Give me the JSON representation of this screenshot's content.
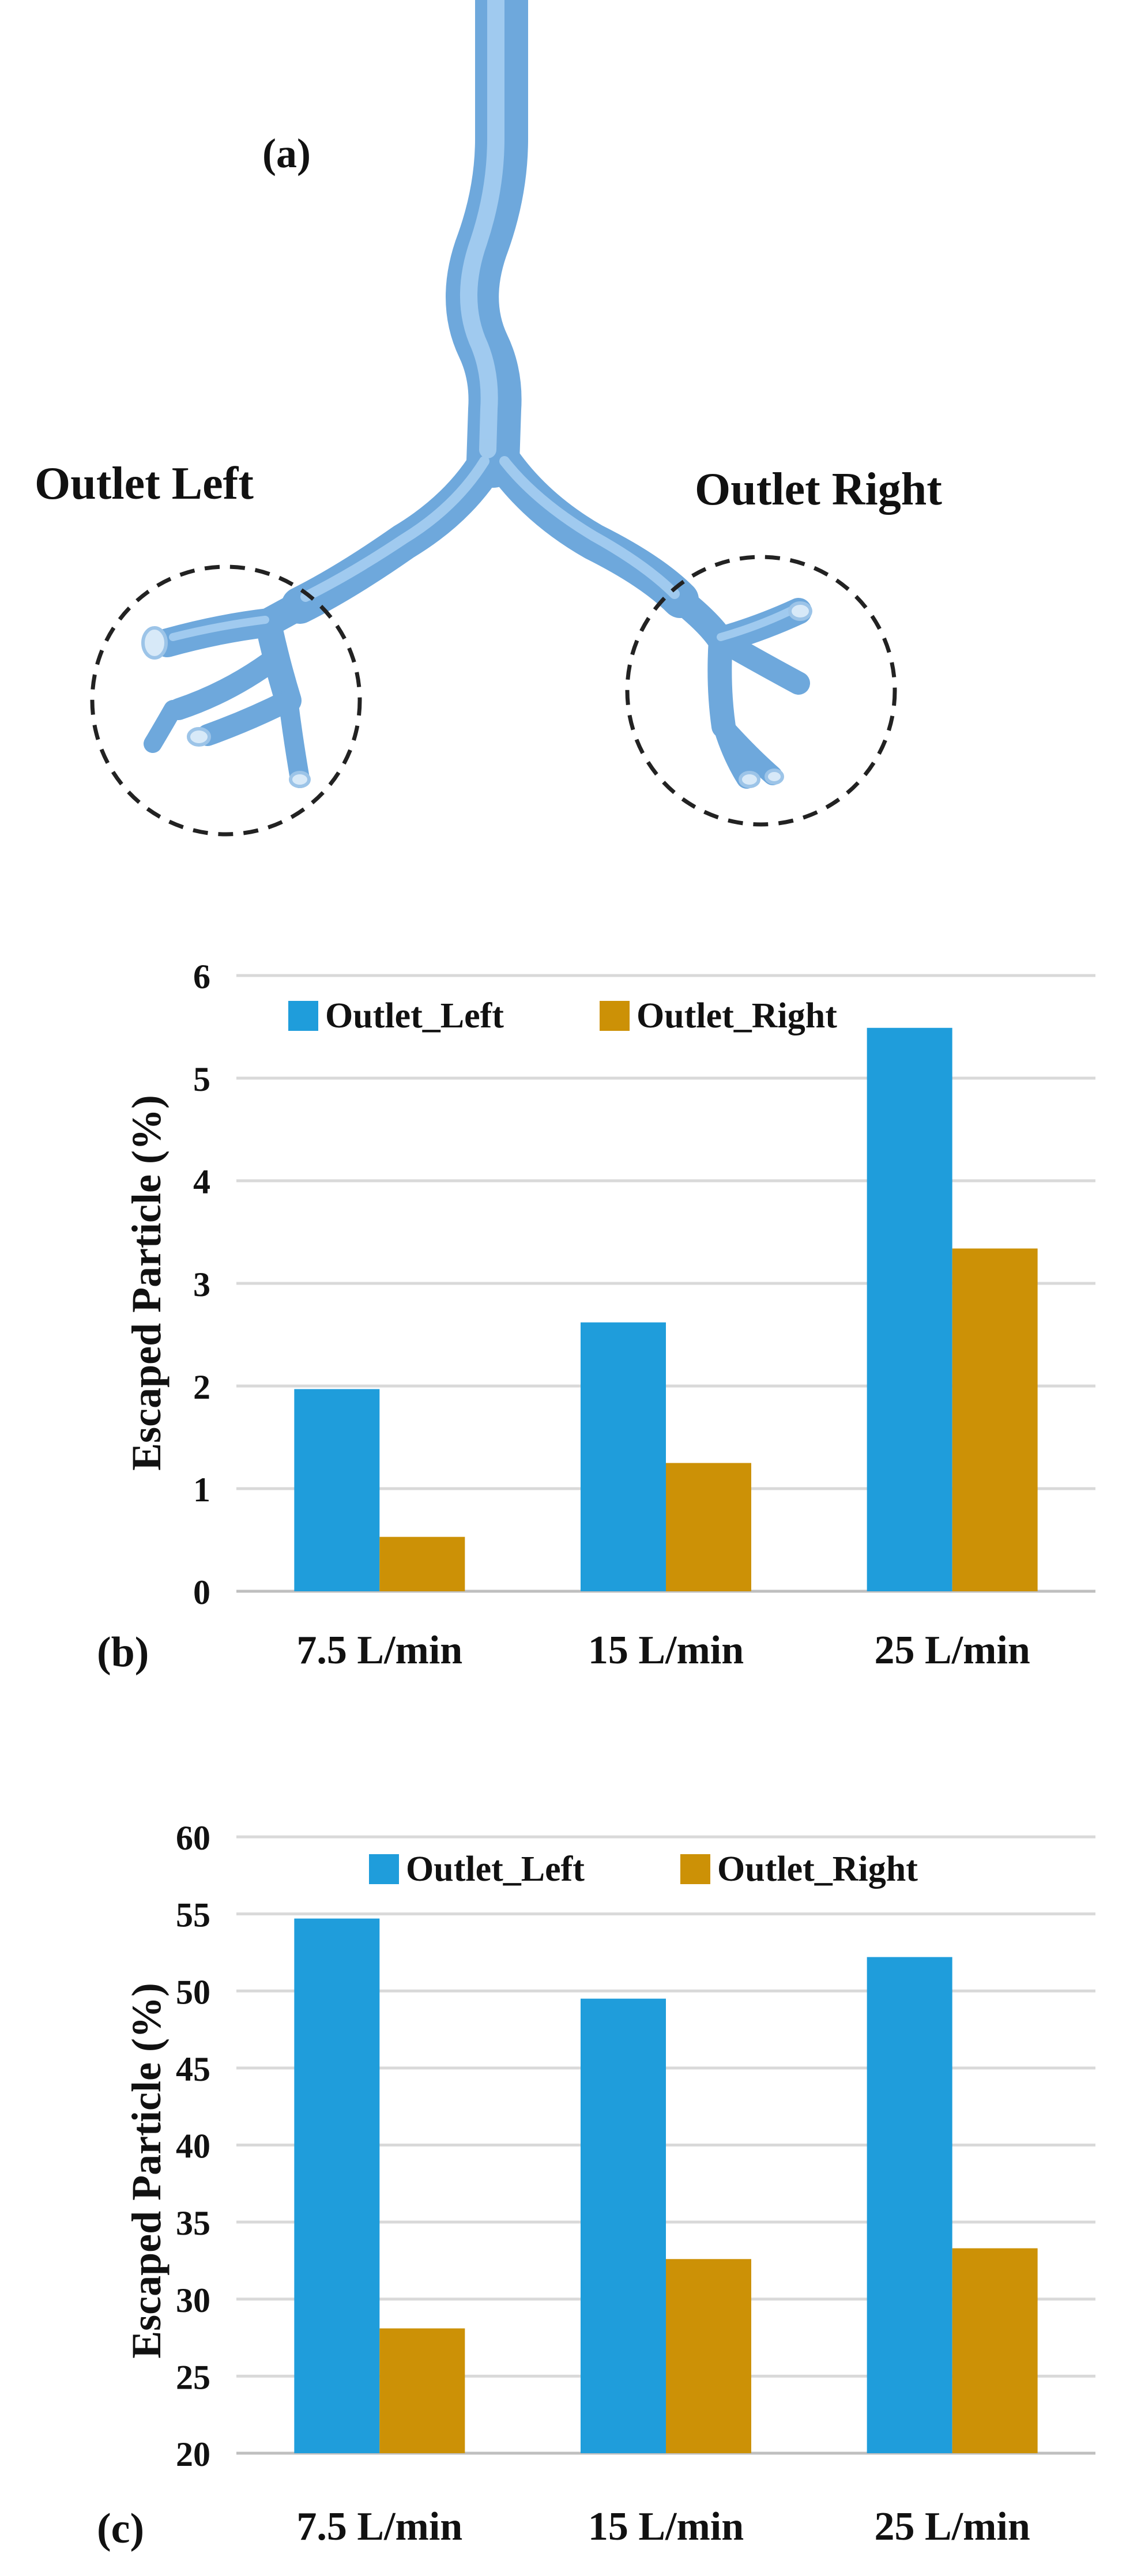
{
  "panel_a": {
    "label": "(a)",
    "outlet_left_label": "Outlet Left",
    "outlet_right_label": "Outlet Right",
    "airway_color": "#78b4e6",
    "circle_color": "#222222"
  },
  "chart_data": [
    {
      "type": "bar",
      "panel_label": "(b)",
      "title": "",
      "xlabel": "",
      "ylabel": "Escaped Particle (%)",
      "categories": [
        "7.5 L/min",
        "15 L/min",
        "25 L/min"
      ],
      "ylim": [
        0,
        6
      ],
      "yticks": [
        0,
        1,
        2,
        3,
        4,
        5,
        6
      ],
      "grid": true,
      "legend_position": "top-left",
      "series": [
        {
          "name": "Outlet_Left",
          "color": "#1f9ddb",
          "values": [
            1.97,
            2.62,
            5.49
          ]
        },
        {
          "name": "Outlet_Right",
          "color": "#cc9106",
          "values": [
            0.53,
            1.25,
            3.34
          ]
        }
      ]
    },
    {
      "type": "bar",
      "panel_label": "(c)",
      "title": "",
      "xlabel": "",
      "ylabel": "Escaped Particle (%)",
      "categories": [
        "7.5 L/min",
        "15 L/min",
        "25 L/min"
      ],
      "ylim": [
        20,
        60
      ],
      "yticks": [
        20,
        25,
        30,
        35,
        40,
        45,
        50,
        55,
        60
      ],
      "grid": true,
      "legend_position": "top-center",
      "series": [
        {
          "name": "Outlet_Left",
          "color": "#1f9ddb",
          "values": [
            54.7,
            49.5,
            52.2
          ]
        },
        {
          "name": "Outlet_Right",
          "color": "#cc9106",
          "values": [
            28.1,
            32.6,
            33.3
          ]
        }
      ]
    }
  ]
}
